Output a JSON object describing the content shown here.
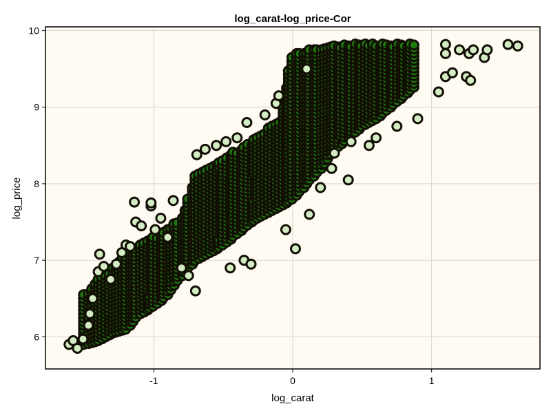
{
  "chart_data": {
    "type": "scatter",
    "title": "log_carat-log_price-Cor",
    "xlabel": "log_carat",
    "ylabel": "log_price",
    "xlim": [
      -1.78,
      1.78
    ],
    "ylim": [
      5.58,
      10.05
    ],
    "xticks": [
      -1,
      0,
      1
    ],
    "xtick_labels": [
      "-1",
      "0",
      "1"
    ],
    "yticks": [
      6,
      7,
      8,
      9,
      10
    ],
    "ytick_labels": [
      "6",
      "7",
      "8",
      "9",
      "10"
    ],
    "grid": true,
    "colors": {
      "plot_background": "#fffaf2",
      "marker_fill": "#d4ecc4",
      "marker_fill_dense": "#1f7a10",
      "marker_edge": "#120f05"
    },
    "series": [
      {
        "points": [
          [
            -1.61,
            5.9
          ],
          [
            -1.58,
            5.95
          ],
          [
            -1.55,
            5.85
          ],
          [
            -1.51,
            5.97
          ],
          [
            -1.47,
            6.15
          ],
          [
            -1.46,
            6.3
          ],
          [
            -1.44,
            6.5
          ],
          [
            -1.4,
            6.85
          ],
          [
            -1.39,
            7.08
          ],
          [
            -1.36,
            6.92
          ],
          [
            -1.31,
            6.75
          ],
          [
            -1.27,
            6.95
          ],
          [
            -1.23,
            7.1
          ],
          [
            -1.2,
            7.2
          ],
          [
            -1.17,
            7.18
          ],
          [
            -1.14,
            7.76
          ],
          [
            -1.13,
            7.5
          ],
          [
            -1.09,
            7.45
          ],
          [
            -1.02,
            7.71
          ],
          [
            -1.02,
            7.75
          ],
          [
            -0.99,
            7.4
          ],
          [
            -0.95,
            7.55
          ],
          [
            -0.9,
            7.3
          ],
          [
            -0.86,
            7.78
          ],
          [
            -0.8,
            6.9
          ],
          [
            -0.75,
            6.8
          ],
          [
            -0.7,
            6.6
          ],
          [
            -0.69,
            8.38
          ],
          [
            -0.63,
            8.45
          ],
          [
            -0.55,
            8.5
          ],
          [
            -0.48,
            8.55
          ],
          [
            -0.45,
            6.9
          ],
          [
            -0.4,
            8.6
          ],
          [
            -0.35,
            7.0
          ],
          [
            -0.33,
            8.8
          ],
          [
            -0.3,
            6.95
          ],
          [
            -0.2,
            8.9
          ],
          [
            -0.12,
            9.05
          ],
          [
            -0.1,
            9.15
          ],
          [
            -0.05,
            7.4
          ],
          [
            0.02,
            7.15
          ],
          [
            0.1,
            9.5
          ],
          [
            0.12,
            7.6
          ],
          [
            0.2,
            7.95
          ],
          [
            0.28,
            8.2
          ],
          [
            0.3,
            8.4
          ],
          [
            0.4,
            8.05
          ],
          [
            0.42,
            8.55
          ],
          [
            0.55,
            8.5
          ],
          [
            0.6,
            8.6
          ],
          [
            0.75,
            8.75
          ],
          [
            0.9,
            8.85
          ],
          [
            1.05,
            9.2
          ],
          [
            1.1,
            9.4
          ],
          [
            1.1,
            9.7
          ],
          [
            1.1,
            9.82
          ],
          [
            1.15,
            9.45
          ],
          [
            1.2,
            9.75
          ],
          [
            1.25,
            9.4
          ],
          [
            1.27,
            9.7
          ],
          [
            1.28,
            9.35
          ],
          [
            1.3,
            9.75
          ],
          [
            1.38,
            9.65
          ],
          [
            1.4,
            9.75
          ],
          [
            1.55,
            9.82
          ],
          [
            1.62,
            9.8
          ]
        ]
      }
    ]
  }
}
